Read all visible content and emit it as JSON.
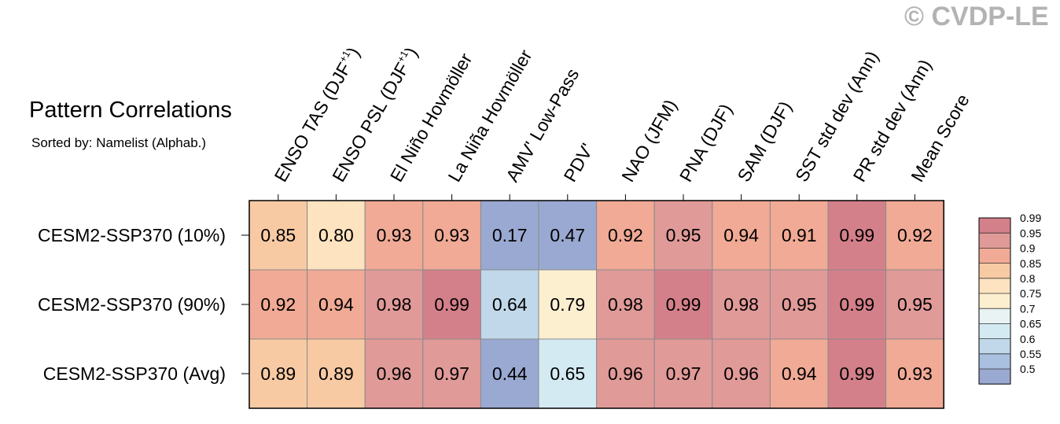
{
  "watermark": "© CVDP-LE",
  "chart_data": {
    "type": "heatmap",
    "title": "Pattern Correlations",
    "subtitle": "Sorted by: Namelist (Alphab.)",
    "columns": [
      {
        "label": "ENSO TAS (DJF",
        "sup": "+1",
        "suffix": ")"
      },
      {
        "label": "ENSO PSL (DJF",
        "sup": "+1",
        "suffix": ")"
      },
      {
        "label": "El Niño Hovmöller",
        "sup": "",
        "suffix": ""
      },
      {
        "label": "La Niña Hovmöller",
        "sup": "",
        "suffix": ""
      },
      {
        "label": "AMV' Low-Pass",
        "sup": "",
        "suffix": ""
      },
      {
        "label": "PDV'",
        "sup": "",
        "suffix": ""
      },
      {
        "label": "NAO (JFM)",
        "sup": "",
        "suffix": ""
      },
      {
        "label": "PNA (DJF)",
        "sup": "",
        "suffix": ""
      },
      {
        "label": "SAM (DJF)",
        "sup": "",
        "suffix": ""
      },
      {
        "label": "SST std dev (Ann)",
        "sup": "",
        "suffix": ""
      },
      {
        "label": "PR std dev (Ann)",
        "sup": "",
        "suffix": ""
      },
      {
        "label": "Mean Score",
        "sup": "",
        "suffix": ""
      }
    ],
    "rows": [
      "CESM2-SSP370 (10%)",
      "CESM2-SSP370 (90%)",
      "CESM2-SSP370 (Avg)"
    ],
    "values": [
      [
        "0.85",
        "0.80",
        "0.93",
        "0.93",
        "0.17",
        "0.47",
        "0.92",
        "0.95",
        "0.94",
        "0.91",
        "0.99",
        "0.92"
      ],
      [
        "0.92",
        "0.94",
        "0.98",
        "0.99",
        "0.64",
        "0.79",
        "0.98",
        "0.99",
        "0.98",
        "0.95",
        "0.99",
        "0.95"
      ],
      [
        "0.89",
        "0.89",
        "0.96",
        "0.97",
        "0.44",
        "0.65",
        "0.96",
        "0.97",
        "0.96",
        "0.94",
        "0.99",
        "0.93"
      ]
    ],
    "colorbar": {
      "levels": [
        "0.99",
        "0.95",
        "0.9",
        "0.85",
        "0.8",
        "0.75",
        "0.7",
        "0.65",
        "0.6",
        "0.55",
        "0.5"
      ],
      "colors": [
        "#d4808a",
        "#e09a98",
        "#f0aa95",
        "#f8caa4",
        "#fde3c0",
        "#fcefd0",
        "#eaf3f4",
        "#d4eaf2",
        "#c0d8ea",
        "#a9c0e0",
        "#9aa9d1"
      ]
    }
  }
}
